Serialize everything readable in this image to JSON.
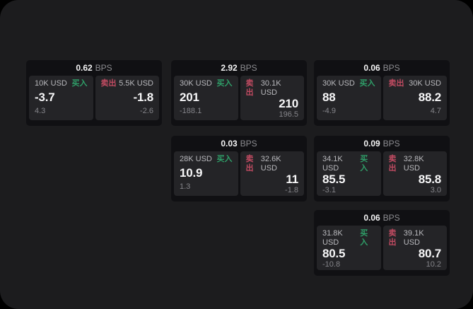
{
  "labels": {
    "bps_unit": "BPS",
    "buy": "买入",
    "sell": "卖出"
  },
  "colors": {
    "buy_green": "#2f9e68",
    "sell_red": "#c24b62",
    "panel_bg": "#1c1c1e",
    "card_bg": "#101013",
    "pane_bg": "#242427"
  },
  "cards": [
    {
      "bps": "0.62",
      "grid": "c1-r1",
      "buy": {
        "size": "10K USD",
        "value": "-3.7",
        "delta": "4.3"
      },
      "sell": {
        "size": "5.5K USD",
        "value": "-1.8",
        "delta": "-2.6"
      }
    },
    {
      "bps": "2.92",
      "grid": "c2-r1",
      "buy": {
        "size": "30K USD",
        "value": "201",
        "delta": "-188.1"
      },
      "sell": {
        "size": "30.1K USD",
        "value": "210",
        "delta": "196.5"
      }
    },
    {
      "bps": "0.06",
      "grid": "c3-r1",
      "buy": {
        "size": "30K USD",
        "value": "88",
        "delta": "-4.9"
      },
      "sell": {
        "size": "30K USD",
        "value": "88.2",
        "delta": "4.7"
      }
    },
    {
      "bps": "0.03",
      "grid": "c2-r2",
      "buy": {
        "size": "28K USD",
        "value": "10.9",
        "delta": "1.3"
      },
      "sell": {
        "size": "32.6K USD",
        "value": "11",
        "delta": "-1.8"
      }
    },
    {
      "bps": "0.09",
      "grid": "c3-r2",
      "buy": {
        "size": "34.1K USD",
        "value": "85.5",
        "delta": "-3.1"
      },
      "sell": {
        "size": "32.8K USD",
        "value": "85.8",
        "delta": "3.0"
      }
    },
    {
      "bps": "0.06",
      "grid": "c3-r3",
      "buy": {
        "size": "31.8K USD",
        "value": "80.5",
        "delta": "-10.8"
      },
      "sell": {
        "size": "39.1K USD",
        "value": "80.7",
        "delta": "10.2"
      }
    }
  ]
}
